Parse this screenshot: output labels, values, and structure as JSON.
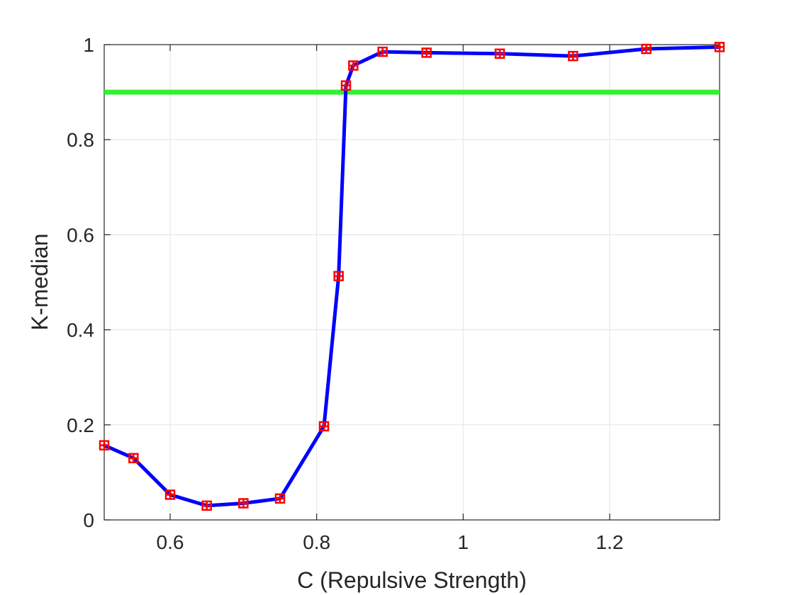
{
  "chart_data": {
    "type": "line",
    "title": "",
    "xlabel": "C (Repulsive Strength)",
    "ylabel": "K-median",
    "xlim": [
      0.51,
      1.35
    ],
    "ylim": [
      0,
      1
    ],
    "x_ticks": [
      0.6,
      0.8,
      1,
      1.2
    ],
    "x_tick_labels": [
      "0.6",
      "0.8",
      "1",
      "1.2"
    ],
    "y_ticks": [
      0,
      0.2,
      0.4,
      0.6,
      0.8,
      1
    ],
    "y_tick_labels": [
      "0",
      "0.2",
      "0.4",
      "0.6",
      "0.8",
      "1"
    ],
    "grid": true,
    "series": [
      {
        "x": [
          0.51,
          0.55,
          0.6,
          0.65,
          0.7,
          0.75,
          0.81,
          0.83,
          0.84,
          0.85,
          0.89,
          0.95,
          1.05,
          1.15,
          1.25,
          1.35
        ],
        "y": [
          0.157,
          0.13,
          0.053,
          0.03,
          0.035,
          0.045,
          0.197,
          0.513,
          0.914,
          0.956,
          0.985,
          0.983,
          0.981,
          0.976,
          0.991,
          0.995
        ],
        "line_color": "#0000ff",
        "marker_color": "#ff0000"
      }
    ],
    "reference_line": {
      "y": 0.9,
      "color": "#33ee33"
    }
  }
}
